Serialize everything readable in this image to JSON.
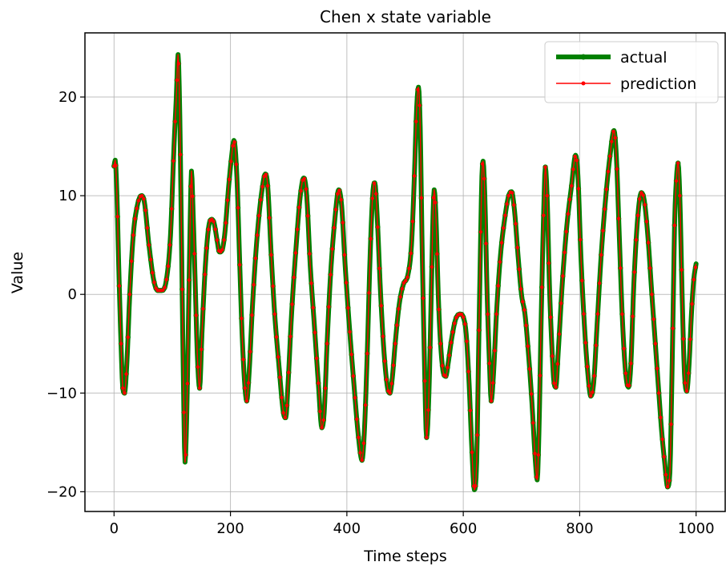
{
  "chart_data": {
    "type": "line",
    "title": "Chen x state variable",
    "xlabel": "Time steps",
    "ylabel": "Value",
    "xlim": [
      -50,
      1050
    ],
    "ylim": [
      -22,
      26.5
    ],
    "xticks": [
      0,
      200,
      400,
      600,
      800,
      1000
    ],
    "yticks": [
      -20,
      -10,
      0,
      10,
      20
    ],
    "grid": true,
    "legend": "top-right",
    "keypoints": [
      [
        0,
        13
      ],
      [
        2,
        13.6
      ],
      [
        5,
        10
      ],
      [
        8,
        3
      ],
      [
        12,
        -5
      ],
      [
        15,
        -9.5
      ],
      [
        18,
        -10
      ],
      [
        22,
        -7
      ],
      [
        27,
        0
      ],
      [
        33,
        6
      ],
      [
        40,
        9
      ],
      [
        47,
        10
      ],
      [
        52,
        9.4
      ],
      [
        60,
        5
      ],
      [
        68,
        1.5
      ],
      [
        75,
        0.4
      ],
      [
        82,
        0.4
      ],
      [
        90,
        1.5
      ],
      [
        97,
        6
      ],
      [
        103,
        15
      ],
      [
        107,
        20
      ],
      [
        110,
        24.3
      ],
      [
        113,
        18
      ],
      [
        116,
        5
      ],
      [
        119,
        -8
      ],
      [
        122,
        -17
      ],
      [
        125,
        -12
      ],
      [
        128,
        -2
      ],
      [
        131,
        8
      ],
      [
        133,
        12.5
      ],
      [
        136,
        8
      ],
      [
        140,
        0
      ],
      [
        143,
        -6
      ],
      [
        147,
        -9.5
      ],
      [
        151,
        -4
      ],
      [
        157,
        3
      ],
      [
        163,
        7
      ],
      [
        168,
        7.6
      ],
      [
        172,
        7.2
      ],
      [
        177,
        5.5
      ],
      [
        181,
        4.3
      ],
      [
        185,
        4.4
      ],
      [
        190,
        6
      ],
      [
        197,
        11
      ],
      [
        202,
        14
      ],
      [
        206,
        15.6
      ],
      [
        211,
        12
      ],
      [
        216,
        3
      ],
      [
        220,
        -4
      ],
      [
        225,
        -9.5
      ],
      [
        228,
        -10.8
      ],
      [
        232,
        -8
      ],
      [
        238,
        -1
      ],
      [
        246,
        6
      ],
      [
        254,
        10.5
      ],
      [
        260,
        12.2
      ],
      [
        264,
        11
      ],
      [
        270,
        4
      ],
      [
        276,
        -2
      ],
      [
        283,
        -7
      ],
      [
        291,
        -12
      ],
      [
        295,
        -12.5
      ],
      [
        299,
        -9
      ],
      [
        305,
        -2
      ],
      [
        313,
        5
      ],
      [
        320,
        10
      ],
      [
        326,
        11.8
      ],
      [
        331,
        10
      ],
      [
        337,
        3
      ],
      [
        344,
        -3
      ],
      [
        351,
        -9
      ],
      [
        357,
        -13.5
      ],
      [
        361,
        -12
      ],
      [
        366,
        -5
      ],
      [
        372,
        2
      ],
      [
        380,
        8
      ],
      [
        386,
        10.6
      ],
      [
        391,
        9
      ],
      [
        397,
        3
      ],
      [
        404,
        -3
      ],
      [
        412,
        -9
      ],
      [
        420,
        -14.5
      ],
      [
        426,
        -16.8
      ],
      [
        430,
        -14
      ],
      [
        435,
        -6
      ],
      [
        440,
        4
      ],
      [
        445,
        10.6
      ],
      [
        448,
        11.3
      ],
      [
        452,
        8
      ],
      [
        458,
        0
      ],
      [
        464,
        -6
      ],
      [
        470,
        -9.5
      ],
      [
        474,
        -10
      ],
      [
        478,
        -8.5
      ],
      [
        483,
        -5
      ],
      [
        490,
        -1
      ],
      [
        497,
        1
      ],
      [
        505,
        2
      ],
      [
        511,
        5
      ],
      [
        516,
        12
      ],
      [
        520,
        19
      ],
      [
        523,
        21
      ],
      [
        526,
        17
      ],
      [
        529,
        6
      ],
      [
        533,
        -6
      ],
      [
        537,
        -14.5
      ],
      [
        541,
        -10
      ],
      [
        545,
        0
      ],
      [
        548,
        8
      ],
      [
        550,
        10.6
      ],
      [
        553,
        8
      ],
      [
        557,
        0
      ],
      [
        561,
        -5
      ],
      [
        566,
        -8
      ],
      [
        570,
        -8.3
      ],
      [
        574,
        -7
      ],
      [
        580,
        -4.5
      ],
      [
        587,
        -2.5
      ],
      [
        595,
        -2
      ],
      [
        600,
        -2.3
      ],
      [
        605,
        -4
      ],
      [
        610,
        -9
      ],
      [
        615,
        -16
      ],
      [
        619,
        -19.8
      ],
      [
        623,
        -17
      ],
      [
        626,
        -7
      ],
      [
        629,
        3
      ],
      [
        632,
        12
      ],
      [
        634,
        13.5
      ],
      [
        637,
        10
      ],
      [
        641,
        0
      ],
      [
        645,
        -7
      ],
      [
        648,
        -10.8
      ],
      [
        652,
        -8
      ],
      [
        657,
        -2
      ],
      [
        664,
        4
      ],
      [
        672,
        8
      ],
      [
        678,
        10
      ],
      [
        683,
        10.4
      ],
      [
        688,
        8.5
      ],
      [
        694,
        4
      ],
      [
        700,
        0
      ],
      [
        706,
        -2
      ],
      [
        712,
        -6
      ],
      [
        718,
        -11
      ],
      [
        724,
        -17
      ],
      [
        727,
        -18.8
      ],
      [
        730,
        -14
      ],
      [
        734,
        -2
      ],
      [
        738,
        8
      ],
      [
        741,
        12.9
      ],
      [
        744,
        10
      ],
      [
        748,
        1
      ],
      [
        752,
        -5
      ],
      [
        756,
        -9
      ],
      [
        759,
        -9.4
      ],
      [
        763,
        -6
      ],
      [
        770,
        1
      ],
      [
        778,
        7
      ],
      [
        786,
        11
      ],
      [
        793,
        14.1
      ],
      [
        797,
        12
      ],
      [
        802,
        4
      ],
      [
        808,
        -3
      ],
      [
        814,
        -8
      ],
      [
        819,
        -10.3
      ],
      [
        824,
        -9
      ],
      [
        830,
        -3
      ],
      [
        837,
        4
      ],
      [
        845,
        10
      ],
      [
        852,
        14
      ],
      [
        859,
        16.6
      ],
      [
        863,
        14
      ],
      [
        868,
        6
      ],
      [
        873,
        -2
      ],
      [
        879,
        -8
      ],
      [
        884,
        -9.4
      ],
      [
        888,
        -7
      ],
      [
        893,
        1
      ],
      [
        900,
        8
      ],
      [
        906,
        10.3
      ],
      [
        911,
        9.5
      ],
      [
        917,
        6
      ],
      [
        924,
        0
      ],
      [
        930,
        -5
      ],
      [
        936,
        -10
      ],
      [
        941,
        -14
      ],
      [
        946,
        -17
      ],
      [
        951,
        -19.5
      ],
      [
        955,
        -18
      ],
      [
        958,
        -10
      ],
      [
        961,
        0
      ],
      [
        963,
        7
      ],
      [
        966,
        11.5
      ],
      [
        969,
        13.3
      ],
      [
        972,
        10
      ],
      [
        976,
        0
      ],
      [
        980,
        -8
      ],
      [
        984,
        -9.8
      ],
      [
        988,
        -7
      ],
      [
        992,
        -2
      ],
      [
        996,
        1.5
      ],
      [
        1000,
        3.1
      ]
    ],
    "series": [
      {
        "name": "actual",
        "color": "#008000"
      },
      {
        "name": "prediction",
        "color": "#ff0000"
      }
    ]
  }
}
